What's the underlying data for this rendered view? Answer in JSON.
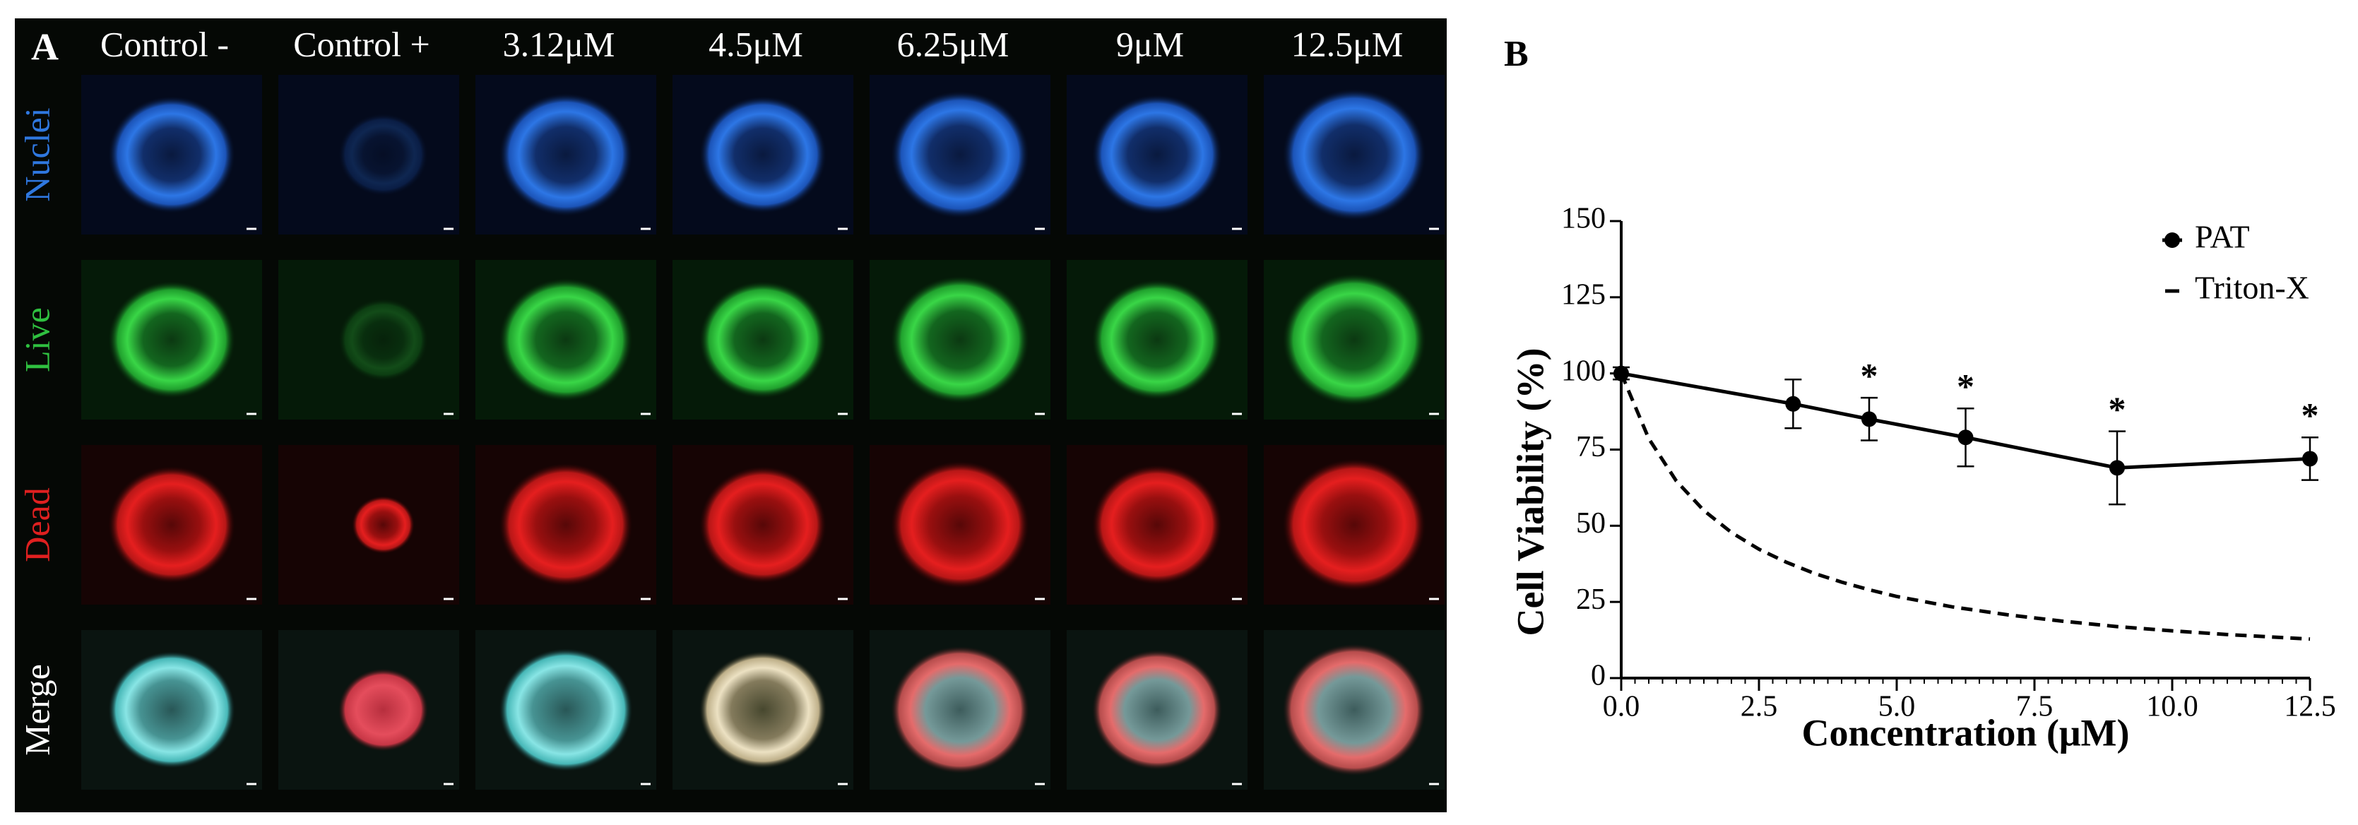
{
  "panel_a": {
    "label": "A",
    "columns": [
      "Control -",
      "Control +",
      "3.12μM",
      "4.5μM",
      "6.25μM",
      "9μM",
      "12.5μM"
    ],
    "rows": [
      "Nuclei",
      "Live",
      "Dead",
      "Merge"
    ]
  },
  "panel_b_label": "B",
  "chart_data": {
    "type": "line",
    "x_label": "Concentration (μM)",
    "y_label": "Cell Viability (%)",
    "xlim": [
      0,
      12.5
    ],
    "xticks": [
      {
        "value": 0,
        "label": "0.0"
      },
      {
        "value": 2.5,
        "label": "2.5"
      },
      {
        "value": 5,
        "label": "5.0"
      },
      {
        "value": 7.5,
        "label": "7.5"
      },
      {
        "value": 10,
        "label": "10.0"
      },
      {
        "value": 12.5,
        "label": "12.5"
      }
    ],
    "ylim": [
      0,
      150
    ],
    "yticks": [
      0,
      25,
      50,
      75,
      100,
      125,
      150
    ],
    "legend": "top-right",
    "series": [
      {
        "name": "PAT",
        "color": "#000000",
        "style": "solid",
        "marker": true,
        "x": [
          0,
          3.12,
          4.5,
          6.25,
          9,
          12.5
        ],
        "values": [
          100,
          90,
          85,
          79,
          69,
          72
        ],
        "errors": [
          2,
          8,
          7,
          9.5,
          12,
          7
        ]
      },
      {
        "name": "Triton-X",
        "color": "#000000",
        "style": "dashed",
        "marker": false,
        "x": [
          0,
          0.5,
          1,
          1.5,
          2,
          2.5,
          3,
          3.5,
          4,
          4.5,
          5,
          6,
          7,
          8,
          9,
          10,
          11,
          12,
          12.5
        ],
        "values": [
          100,
          78.6,
          64.7,
          55,
          47.8,
          42.3,
          38,
          34.4,
          31.5,
          29,
          26.8,
          23.4,
          20.8,
          18.7,
          16.9,
          15.5,
          14.3,
          13.3,
          12.8
        ]
      }
    ],
    "annotations": [
      {
        "series": 0,
        "index": 2,
        "text": "*"
      },
      {
        "series": 0,
        "index": 3,
        "text": "*"
      },
      {
        "series": 0,
        "index": 4,
        "text": "*"
      },
      {
        "series": 0,
        "index": 5,
        "text": "*"
      }
    ]
  }
}
